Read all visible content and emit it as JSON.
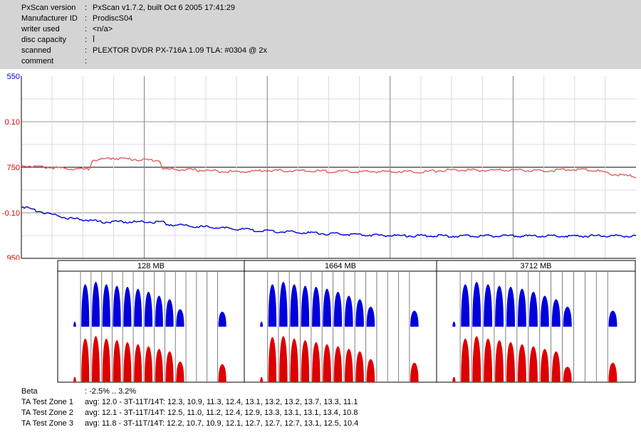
{
  "header": {
    "rows": [
      {
        "key": "PxScan version",
        "sep": ":",
        "value": "PxScan v1.7.2, built Oct  6 2005 17:41:29"
      },
      {
        "key": "Manufacturer ID",
        "sep": ":",
        "value": "ProdiscS04"
      },
      {
        "key": "writer used",
        "sep": ":",
        "value": "<n/a>"
      },
      {
        "key": "disc capacity",
        "sep": ":",
        "value": "Ī"
      },
      {
        "key": "scanned",
        "sep": ":",
        "value": "PLEXTOR DVDR PX-716A 1.09 TLA: #0304 @ 2x"
      },
      {
        "key": "comment",
        "sep": ":",
        "value": ""
      }
    ]
  },
  "colors": {
    "blue": "#0000dd",
    "red": "#dd0000",
    "redTrace": "#e06060",
    "grid": "#d8d8e8",
    "axis": "#000000",
    "header_bg": "#d4d4d4"
  },
  "chart_data": [
    {
      "type": "line",
      "y_tick_labels": [
        {
          "label": "550",
          "color": "blue"
        },
        {
          "label": "0.10",
          "color": "red"
        },
        {
          "label": "750",
          "color": "red"
        },
        {
          "label": "-0.10",
          "color": "red"
        },
        {
          "label": "950",
          "color": "red"
        }
      ],
      "ylim": [
        0,
        8
      ],
      "xlim": [
        0,
        1
      ],
      "grid": true,
      "series": [
        {
          "color": "red",
          "x": [
            0,
            0.05,
            0.09,
            0.11,
            0.115,
            0.15,
            0.2,
            0.225,
            0.23,
            0.28,
            0.35,
            0.4,
            0.45,
            0.55,
            0.6,
            0.65,
            0.7,
            0.75,
            0.8,
            0.85,
            0.9,
            0.93,
            0.96,
            1.0
          ],
          "y": [
            4.08,
            3.98,
            3.92,
            3.9,
            4.3,
            4.4,
            4.32,
            4.3,
            3.92,
            3.88,
            3.8,
            3.86,
            3.84,
            3.8,
            3.82,
            3.8,
            3.88,
            3.86,
            3.88,
            3.84,
            3.9,
            3.88,
            3.7,
            3.58
          ]
        },
        {
          "color": "blue",
          "x": [
            0,
            0.04,
            0.08,
            0.12,
            0.125,
            0.23,
            0.235,
            0.3,
            0.4,
            0.5,
            0.6,
            0.7,
            0.8,
            0.9,
            1.0
          ],
          "y": [
            2.28,
            2.0,
            1.75,
            1.65,
            1.6,
            1.6,
            1.5,
            1.38,
            1.2,
            1.08,
            1.0,
            0.98,
            0.98,
            0.98,
            0.98
          ]
        }
      ]
    },
    {
      "type": "bar",
      "panels": [
        {
          "title": "128 MB",
          "blue": [
            0.1,
            0.85,
            0.9,
            0.85,
            0.82,
            0.8,
            0.76,
            0.7,
            0.62,
            0.55,
            0.35,
            0,
            0,
            0,
            0.3
          ],
          "red": [
            0.1,
            0.85,
            0.9,
            0.85,
            0.82,
            0.78,
            0.74,
            0.7,
            0.65,
            0.6,
            0.4,
            0,
            0,
            0,
            0.35
          ]
        },
        {
          "title": "1664 MB",
          "blue": [
            0.1,
            0.85,
            0.9,
            0.85,
            0.82,
            0.8,
            0.76,
            0.7,
            0.62,
            0.55,
            0.4,
            0,
            0,
            0,
            0.32
          ],
          "red": [
            0.1,
            0.88,
            0.9,
            0.85,
            0.82,
            0.78,
            0.74,
            0.7,
            0.65,
            0.6,
            0.45,
            0,
            0,
            0,
            0.38
          ]
        },
        {
          "title": "3712 MB",
          "blue": [
            0.1,
            0.85,
            0.9,
            0.85,
            0.82,
            0.8,
            0.76,
            0.7,
            0.62,
            0.55,
            0.4,
            0,
            0,
            0,
            0.32
          ],
          "red": [
            0.1,
            0.85,
            0.9,
            0.85,
            0.82,
            0.78,
            0.74,
            0.7,
            0.65,
            0.6,
            0.3,
            0,
            0,
            0,
            0.38
          ]
        }
      ]
    }
  ],
  "footer": {
    "rows": [
      {
        "key": "Beta",
        "value": ": -2.5% .. 3.2%"
      },
      {
        "key": "TA Test Zone 1",
        "value": "avg: 12.0 - 3T-11T/14T: 12.3, 10.9, 11.3, 12.4, 13.1, 13.2, 13.2, 13.7, 13.3, 11.1"
      },
      {
        "key": "TA Test Zone 2",
        "value": "avg: 12.1 - 3T-11T/14T: 12.5, 11.0, 11.2, 12.4, 12.9, 13.3, 13.1, 13.1, 13.4, 10.8"
      },
      {
        "key": "TA Test Zone 3",
        "value": "avg: 11.8 - 3T-11T/14T: 12.2, 10.7, 10.9, 12.1, 12.7, 12.7, 12.7, 13.1, 12.5, 10.4"
      }
    ]
  }
}
